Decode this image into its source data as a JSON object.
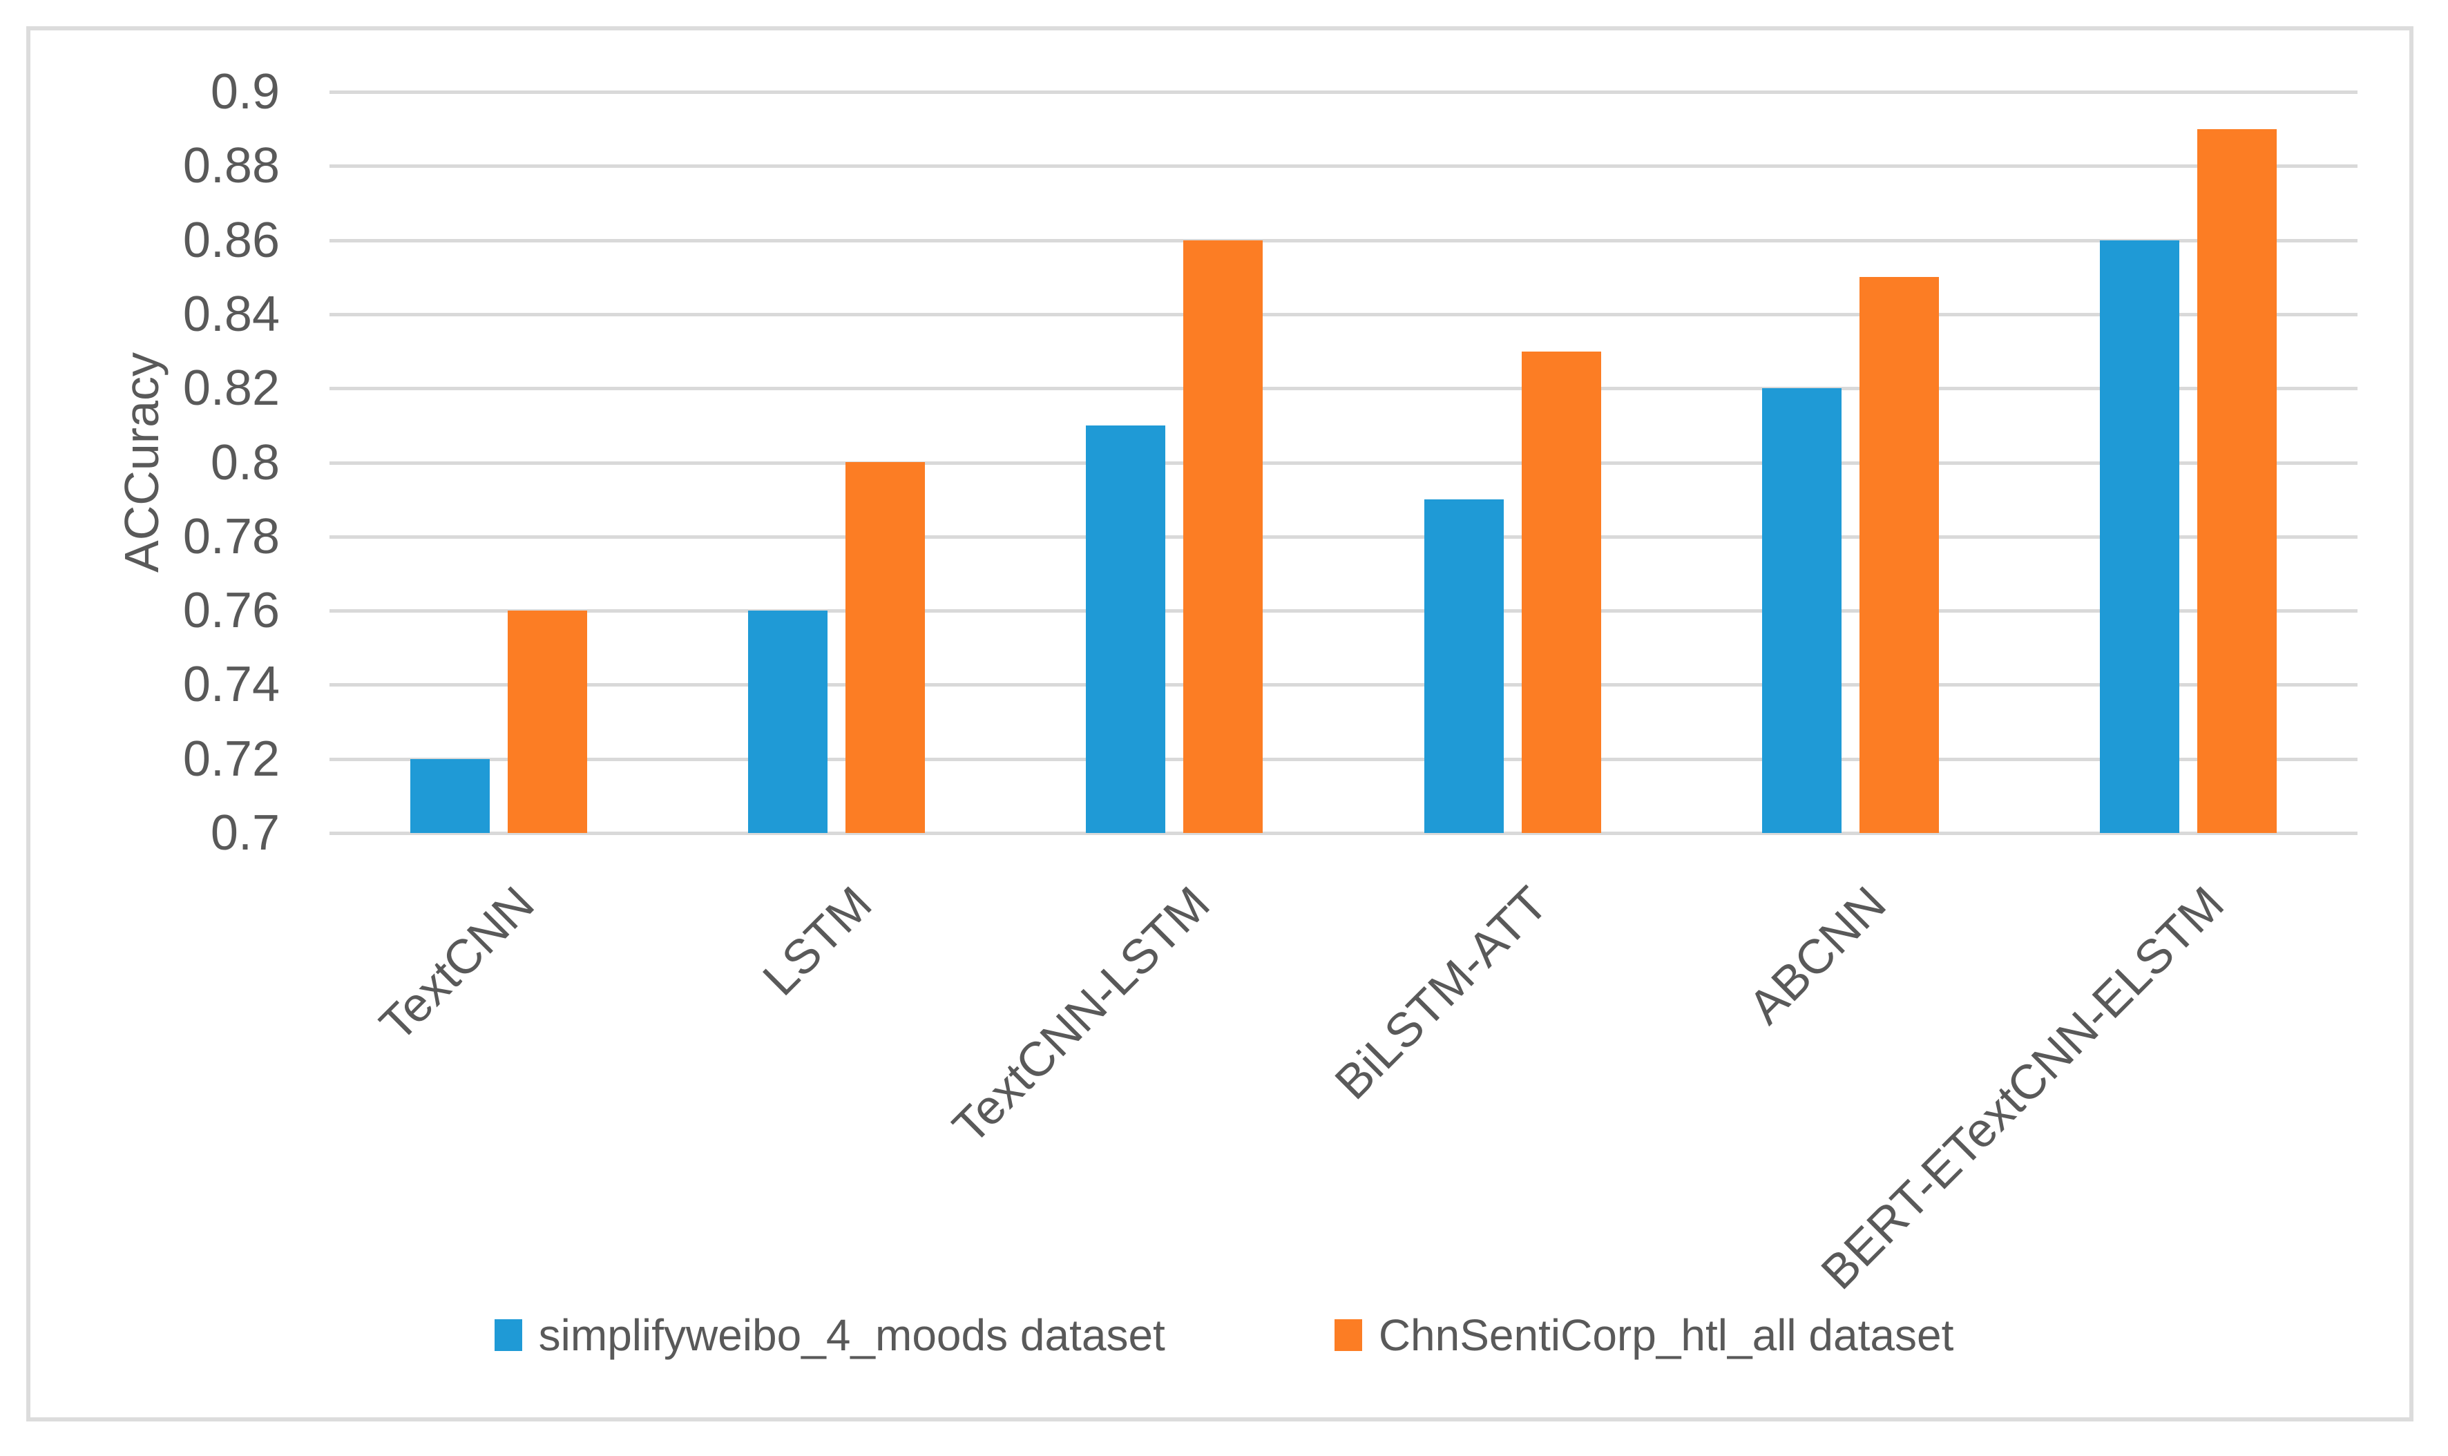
{
  "chart_data": {
    "type": "bar",
    "title": "",
    "ylabel": "ACCuracy",
    "xlabel": "",
    "ylim": [
      0.7,
      0.9
    ],
    "ytick_labels": [
      "0.9",
      "0.88",
      "0.86",
      "0.84",
      "0.82",
      "0.8",
      "0.78",
      "0.76",
      "0.74",
      "0.72",
      "0.7"
    ],
    "grid": true,
    "legend_position": "bottom",
    "categories": [
      "TextCNN",
      "LSTM",
      "TextCNN-LSTM",
      "BiLSTM-ATT",
      "ABCNN",
      "BERT-ETextCNN-ELSTM"
    ],
    "series": [
      {
        "name": "simplifyweibo_4_moods dataset",
        "color": "#1f9ad6",
        "values": [
          0.72,
          0.76,
          0.81,
          0.79,
          0.82,
          0.86
        ]
      },
      {
        "name": "ChnSentiCorp_htl_all dataset",
        "color": "#fc7d24",
        "values": [
          0.76,
          0.8,
          0.86,
          0.83,
          0.85,
          0.89
        ]
      }
    ]
  }
}
